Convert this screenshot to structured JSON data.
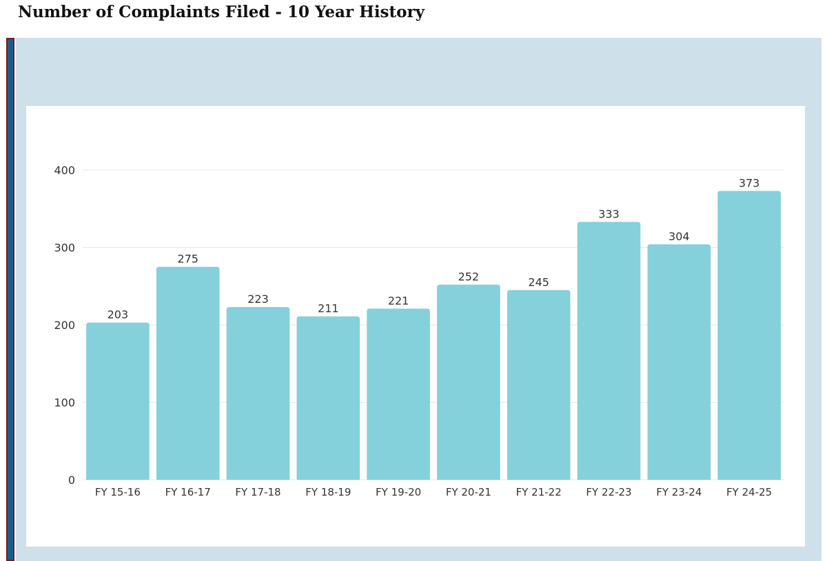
{
  "page": {
    "title": "Number of Complaints Filed - 10 Year History"
  },
  "colors": {
    "bar": "#84d0db",
    "grid": "#e6e6e6",
    "panel": "#cee0ea",
    "accent_bar": "#1b5e8c"
  },
  "chart_data": {
    "type": "bar",
    "title": "Number of Complaints Filed - 10 Year History",
    "xlabel": "",
    "ylabel": "",
    "categories": [
      "FY 15-16",
      "FY 16-17",
      "FY 17-18",
      "FY 18-19",
      "FY 19-20",
      "FY 20-21",
      "FY 21-22",
      "FY 22-23",
      "FY 23-24",
      "FY 24-25"
    ],
    "values": [
      203,
      275,
      223,
      211,
      221,
      252,
      245,
      333,
      304,
      373
    ],
    "ylim": [
      0,
      400
    ],
    "yticks": [
      0,
      100,
      200,
      300,
      400
    ],
    "grid": true,
    "data_labels": true,
    "legend": "none"
  }
}
